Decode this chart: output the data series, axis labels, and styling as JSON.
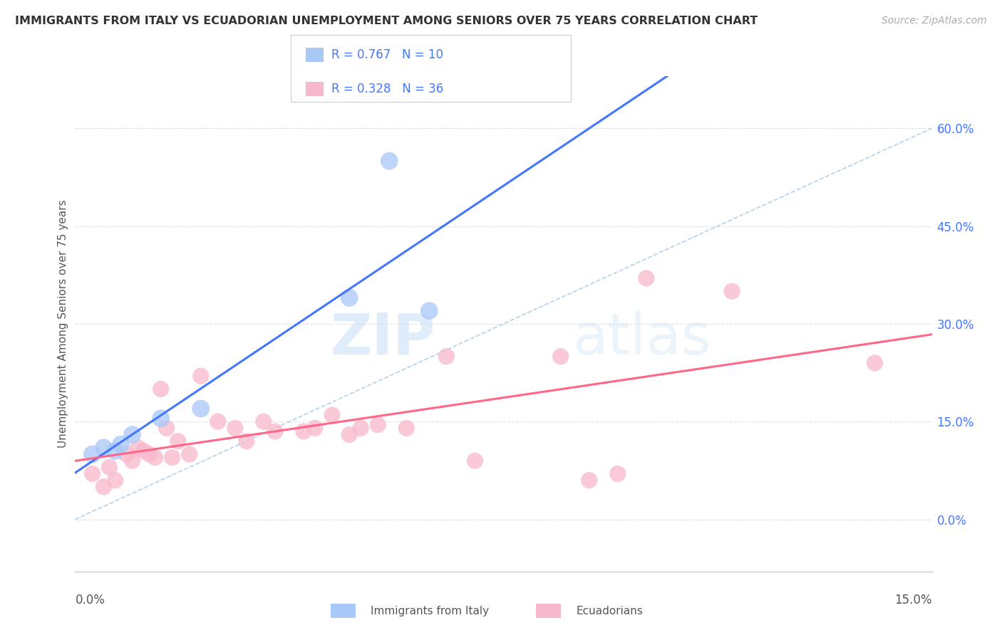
{
  "title": "IMMIGRANTS FROM ITALY VS ECUADORIAN UNEMPLOYMENT AMONG SENIORS OVER 75 YEARS CORRELATION CHART",
  "source": "Source: ZipAtlas.com",
  "ylabel": "Unemployment Among Seniors over 75 years",
  "y_tick_values": [
    0.0,
    15.0,
    30.0,
    45.0,
    60.0
  ],
  "xmin": 0.0,
  "xmax": 15.0,
  "ymin": -8.0,
  "ymax": 68.0,
  "legend_blue_r": "R = 0.767",
  "legend_blue_n": "N = 10",
  "legend_pink_r": "R = 0.328",
  "legend_pink_n": "N = 36",
  "legend_label_blue": "Immigrants from Italy",
  "legend_label_pink": "Ecuadorians",
  "blue_color": "#a8c8f8",
  "pink_color": "#f8b8cc",
  "blue_line_color": "#4477ff",
  "pink_line_color": "#ff6688",
  "diag_color": "#aaccee",
  "blue_scatter": [
    [
      0.3,
      10.0
    ],
    [
      0.5,
      11.0
    ],
    [
      0.7,
      10.5
    ],
    [
      0.8,
      11.5
    ],
    [
      1.0,
      13.0
    ],
    [
      1.5,
      15.5
    ],
    [
      2.2,
      17.0
    ],
    [
      4.8,
      34.0
    ],
    [
      5.5,
      55.0
    ],
    [
      6.2,
      32.0
    ]
  ],
  "pink_scatter": [
    [
      0.3,
      7.0
    ],
    [
      0.5,
      5.0
    ],
    [
      0.6,
      8.0
    ],
    [
      0.7,
      6.0
    ],
    [
      0.9,
      10.0
    ],
    [
      1.0,
      9.0
    ],
    [
      1.1,
      11.0
    ],
    [
      1.2,
      10.5
    ],
    [
      1.3,
      10.0
    ],
    [
      1.4,
      9.5
    ],
    [
      1.5,
      20.0
    ],
    [
      1.6,
      14.0
    ],
    [
      1.7,
      9.5
    ],
    [
      1.8,
      12.0
    ],
    [
      2.0,
      10.0
    ],
    [
      2.2,
      22.0
    ],
    [
      2.5,
      15.0
    ],
    [
      2.8,
      14.0
    ],
    [
      3.0,
      12.0
    ],
    [
      3.3,
      15.0
    ],
    [
      3.5,
      13.5
    ],
    [
      4.0,
      13.5
    ],
    [
      4.2,
      14.0
    ],
    [
      4.5,
      16.0
    ],
    [
      4.8,
      13.0
    ],
    [
      5.0,
      14.0
    ],
    [
      5.3,
      14.5
    ],
    [
      5.8,
      14.0
    ],
    [
      6.5,
      25.0
    ],
    [
      7.0,
      9.0
    ],
    [
      8.5,
      25.0
    ],
    [
      9.0,
      6.0
    ],
    [
      9.5,
      7.0
    ],
    [
      10.0,
      37.0
    ],
    [
      11.5,
      35.0
    ],
    [
      14.0,
      24.0
    ]
  ],
  "watermark_zip": "ZIP",
  "watermark_atlas": "atlas",
  "background_color": "#ffffff",
  "grid_color": "#e0e0e0"
}
